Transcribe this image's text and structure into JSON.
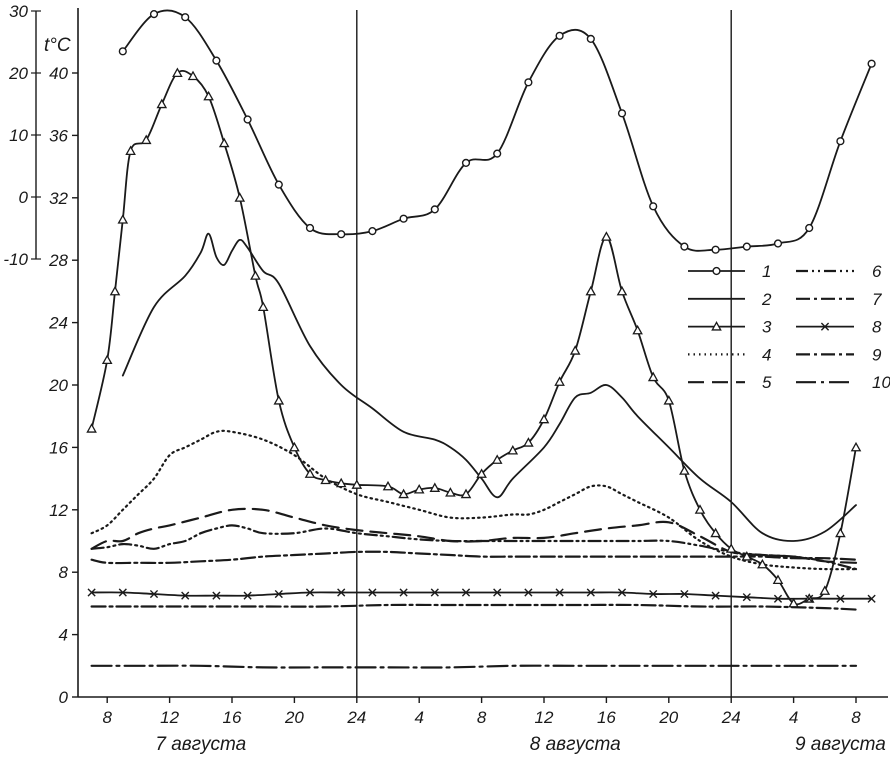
{
  "chart_data": {
    "type": "line",
    "x_unit": "hours from 0:00 on 7 August",
    "left_axis": {
      "label": "",
      "ticks": [
        0,
        4,
        8,
        12,
        16,
        20,
        24,
        28,
        32,
        36,
        40
      ],
      "ylim": [
        0,
        40
      ]
    },
    "inset_axis": {
      "label": "t°C",
      "ticks": [
        30,
        20,
        10,
        0,
        -10
      ],
      "ylim": [
        -10,
        30
      ]
    },
    "x_ticks": [
      {
        "x": 8,
        "label": "8"
      },
      {
        "x": 12,
        "label": "12"
      },
      {
        "x": 16,
        "label": "16"
      },
      {
        "x": 20,
        "label": "20"
      },
      {
        "x": 24,
        "label": "24"
      },
      {
        "x": 28,
        "label": "4"
      },
      {
        "x": 32,
        "label": "8"
      },
      {
        "x": 36,
        "label": "12"
      },
      {
        "x": 40,
        "label": "16"
      },
      {
        "x": 44,
        "label": "20"
      },
      {
        "x": 48,
        "label": "24"
      },
      {
        "x": 52,
        "label": "4"
      },
      {
        "x": 56,
        "label": "8"
      }
    ],
    "day_labels": [
      {
        "x": 14,
        "label": "7 августа"
      },
      {
        "x": 38,
        "label": "8 августа"
      },
      {
        "x": 55,
        "label": "9 августа"
      }
    ],
    "midnight_lines": [
      24,
      48
    ],
    "legend": [
      "1",
      "2",
      "3",
      "4",
      "5",
      "6",
      "7",
      "8",
      "9",
      "10"
    ],
    "series": [
      {
        "name": "1",
        "axis": "inset",
        "marker": "circle",
        "style": "solid",
        "x": [
          9,
          11,
          13,
          15,
          17,
          19,
          21,
          23,
          25,
          27,
          29,
          31,
          33,
          35,
          37,
          39,
          41,
          43,
          45,
          47,
          49,
          51,
          53,
          55,
          57
        ],
        "y": [
          23.5,
          29.5,
          29,
          22,
          12.5,
          2,
          -5,
          -6,
          -5.5,
          -3.5,
          -2,
          5.5,
          7,
          18.5,
          26,
          25.5,
          13.5,
          -1.5,
          -8,
          -8.5,
          -8,
          -7.5,
          -5,
          9,
          21.5
        ]
      },
      {
        "name": "2",
        "axis": "main",
        "marker": "none",
        "style": "solid",
        "x": [
          9,
          11,
          13,
          14,
          14.5,
          15,
          15.5,
          16,
          16.5,
          17,
          18,
          19,
          21,
          23,
          25,
          27,
          29,
          30,
          31,
          32,
          33,
          34,
          36,
          37,
          38,
          39,
          40,
          41,
          42,
          44,
          46,
          48,
          50,
          52,
          54,
          56
        ],
        "y": [
          20.6,
          25,
          27,
          28.5,
          29.7,
          28.2,
          27.7,
          28.6,
          29.3,
          28.8,
          27.3,
          26.5,
          22.5,
          20,
          18.5,
          17,
          16.5,
          16,
          15.2,
          14,
          12.8,
          14,
          16,
          17.5,
          19.2,
          19.5,
          20,
          19.2,
          18,
          16,
          14,
          12.5,
          10.5,
          10,
          10.6,
          12.3
        ]
      },
      {
        "name": "3",
        "axis": "main",
        "marker": "triangle",
        "style": "solid",
        "x": [
          7,
          8,
          8.5,
          9,
          9.5,
          10.5,
          11.5,
          12.5,
          13.5,
          14.5,
          15.5,
          16.5,
          17.5,
          18,
          19,
          20,
          21,
          22,
          23,
          24,
          26,
          27,
          28,
          29,
          30,
          31,
          32,
          33,
          34,
          35,
          36,
          37,
          38,
          39,
          40,
          41,
          42,
          43,
          44,
          45,
          46,
          47,
          48,
          49,
          50,
          51,
          52,
          53,
          54,
          55,
          56
        ],
        "y": [
          17.2,
          21.6,
          26,
          30.6,
          35,
          35.7,
          38,
          40,
          39.8,
          38.5,
          35.5,
          32,
          27,
          25,
          19,
          16,
          14.3,
          13.9,
          13.7,
          13.6,
          13.5,
          13,
          13.3,
          13.4,
          13.1,
          13,
          14.3,
          15.2,
          15.8,
          16.3,
          17.8,
          20.2,
          22.2,
          26,
          29.5,
          26,
          23.5,
          20.5,
          19,
          14.5,
          12,
          10.5,
          9.5,
          9,
          8.5,
          7.5,
          6,
          6.3,
          6.8,
          10.5,
          16
        ]
      },
      {
        "name": "4",
        "axis": "main",
        "marker": "none",
        "style": "dotted",
        "x": [
          7,
          8,
          9,
          10,
          11,
          12,
          13,
          14,
          15,
          16,
          18,
          20,
          22,
          24,
          26,
          28,
          30,
          32,
          34,
          35,
          36,
          37,
          38,
          39,
          40,
          41,
          42,
          44,
          46,
          48,
          50,
          52,
          54,
          56
        ],
        "y": [
          10.5,
          11,
          12,
          13,
          14,
          15.5,
          16,
          16.5,
          17,
          17,
          16.5,
          15.5,
          14,
          13,
          12.5,
          12,
          11.5,
          11.5,
          11.7,
          11.7,
          12,
          12.5,
          13,
          13.5,
          13.5,
          13,
          12.5,
          11.5,
          10,
          9,
          8.5,
          8.3,
          8.2,
          8.2
        ]
      },
      {
        "name": "5",
        "axis": "main",
        "marker": "none",
        "style": "long-dash",
        "x": [
          7,
          8,
          9,
          10,
          11,
          12,
          14,
          16,
          18,
          20,
          22,
          24,
          26,
          28,
          30,
          32,
          34,
          36,
          38,
          40,
          42,
          44,
          46,
          48,
          50,
          52,
          54,
          56
        ],
        "y": [
          9.5,
          10,
          10,
          10.5,
          10.8,
          11,
          11.5,
          12,
          12,
          11.5,
          11,
          10.7,
          10.5,
          10.3,
          10,
          10,
          10.2,
          10.2,
          10.5,
          10.8,
          11,
          11.2,
          10.3,
          9.3,
          9.1,
          9,
          8.7,
          8.6
        ]
      },
      {
        "name": "6",
        "axis": "main",
        "marker": "none",
        "style": "dash-dot-dot",
        "x": [
          7,
          8,
          9,
          10,
          11,
          12,
          13,
          14,
          15,
          16,
          17,
          18,
          20,
          22,
          24,
          26,
          28,
          30,
          32,
          34,
          36,
          38,
          40,
          42,
          44,
          46,
          48,
          50,
          52,
          54,
          56
        ],
        "y": [
          9.5,
          9.6,
          9.8,
          9.7,
          9.5,
          9.8,
          10,
          10.5,
          10.8,
          11,
          10.8,
          10.5,
          10.5,
          10.8,
          10.5,
          10.3,
          10.1,
          10,
          10,
          10,
          10,
          10,
          10,
          10,
          10,
          9.7,
          9.3,
          9.1,
          9,
          8.7,
          8.2
        ]
      },
      {
        "name": "7",
        "axis": "main",
        "marker": "none",
        "style": "dash-dot",
        "x": [
          7,
          8,
          10,
          12,
          14,
          16,
          18,
          20,
          22,
          24,
          26,
          28,
          30,
          32,
          34,
          36,
          38,
          40,
          42,
          44,
          46,
          48,
          50,
          52,
          54,
          56
        ],
        "y": [
          8.8,
          8.6,
          8.6,
          8.6,
          8.7,
          8.8,
          9,
          9.1,
          9.2,
          9.3,
          9.3,
          9.2,
          9.1,
          9,
          9,
          9,
          9,
          9,
          9,
          9,
          9,
          9,
          9,
          8.9,
          8.9,
          8.8
        ]
      },
      {
        "name": "8",
        "axis": "main",
        "marker": "cross",
        "style": "solid",
        "x": [
          7,
          9,
          11,
          13,
          15,
          17,
          19,
          21,
          23,
          25,
          27,
          29,
          31,
          33,
          35,
          37,
          39,
          41,
          43,
          45,
          47,
          49,
          51,
          53,
          55,
          57
        ],
        "y": [
          6.7,
          6.7,
          6.6,
          6.5,
          6.5,
          6.5,
          6.6,
          6.7,
          6.7,
          6.7,
          6.7,
          6.7,
          6.7,
          6.7,
          6.7,
          6.7,
          6.7,
          6.7,
          6.6,
          6.6,
          6.5,
          6.4,
          6.3,
          6.3,
          6.3,
          6.3
        ]
      },
      {
        "name": "9",
        "axis": "main",
        "marker": "none",
        "style": "dash-dot",
        "x": [
          7,
          10,
          14,
          18,
          22,
          26,
          30,
          34,
          38,
          42,
          46,
          50,
          54,
          56
        ],
        "y": [
          5.8,
          5.8,
          5.8,
          5.8,
          5.8,
          5.9,
          5.9,
          5.9,
          5.9,
          5.9,
          5.8,
          5.8,
          5.7,
          5.6
        ]
      },
      {
        "name": "10",
        "axis": "main",
        "marker": "none",
        "style": "dash-dot-long",
        "x": [
          7,
          10,
          14,
          18,
          22,
          26,
          30,
          34,
          38,
          42,
          46,
          50,
          54,
          56
        ],
        "y": [
          2,
          2,
          2,
          1.9,
          1.9,
          1.9,
          1.9,
          2,
          2,
          2,
          2,
          2,
          2,
          2
        ]
      }
    ]
  }
}
